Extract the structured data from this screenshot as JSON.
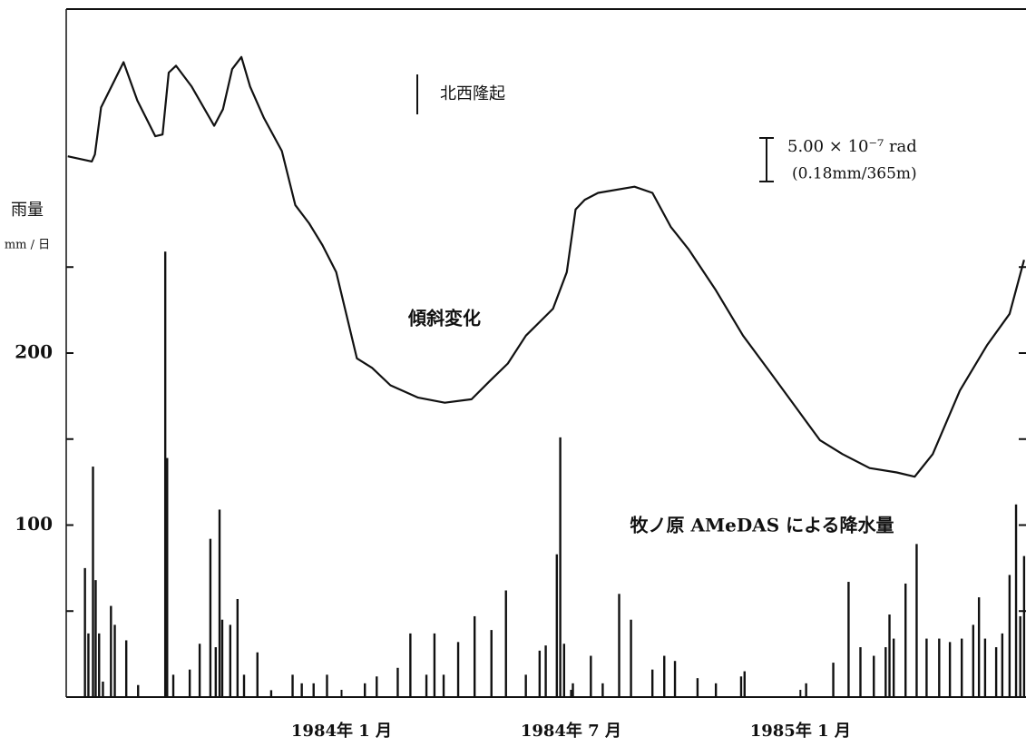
{
  "chart_data": {
    "type": "bar",
    "ylabel": "雨量",
    "yunit": "mm / 日",
    "ylim": [
      0,
      400
    ],
    "yticks": [
      100,
      200
    ],
    "yminor": [
      50,
      150,
      250
    ],
    "xlim": [
      -7.2,
      17.9
    ],
    "xticks": [
      {
        "value": 0,
        "label": "1984年 1 月"
      },
      {
        "value": 6,
        "label": "1984年 7 月"
      },
      {
        "value": 12,
        "label": "1985年 1 月"
      }
    ],
    "y2lim": [
      0,
      79
    ],
    "annotation": "北西隆起",
    "scale_bar": {
      "value": 5,
      "label": "5.00 × 10⁻⁷ rad",
      "sublabel": "(0.18mm/365m)"
    },
    "series": [
      {
        "name": "牧ノ原 AMeDAS による降水量",
        "type": "bar",
        "color": "#111111",
        "x": [
          -6.71,
          -6.62,
          -6.5,
          -6.43,
          -6.34,
          -6.24,
          -6.03,
          -5.93,
          -5.63,
          -5.32,
          -4.61,
          -4.56,
          -4.4,
          -3.97,
          -3.71,
          -3.43,
          -3.29,
          -3.19,
          -3.12,
          -2.91,
          -2.72,
          -2.55,
          -2.2,
          -1.84,
          -1.28,
          -1.04,
          -0.73,
          -0.38,
          0.61,
          0.92,
          1.47,
          1.8,
          2.22,
          2.43,
          2.67,
          3.05,
          3.48,
          3.92,
          4.3,
          4.82,
          5.18,
          5.34,
          5.63,
          5.72,
          5.82,
          6.05,
          6.52,
          6.83,
          7.26,
          7.57,
          8.13,
          8.44,
          8.72,
          9.31,
          9.79,
          10.45,
          10.54,
          12.15,
          12.86,
          13.26,
          13.57,
          13.92,
          14.23,
          14.33,
          14.44,
          14.75,
          15.04,
          15.3,
          15.63,
          15.91,
          16.22,
          16.52,
          16.67,
          16.83,
          17.12,
          17.28,
          17.47,
          17.64,
          17.75,
          17.85
        ],
        "values": [
          75,
          37,
          134,
          68,
          37,
          9,
          53,
          42,
          33,
          7,
          259,
          139,
          13,
          16,
          31,
          92,
          29,
          109,
          45,
          42,
          57,
          13,
          26,
          4,
          13,
          8,
          8,
          13,
          8,
          12,
          17,
          37,
          13,
          37,
          13,
          32,
          47,
          39,
          62,
          13,
          27,
          30,
          83,
          151,
          31,
          8,
          24,
          8,
          60,
          45,
          16,
          24,
          21,
          11,
          8,
          12,
          15,
          8,
          20,
          67,
          29,
          24,
          29,
          48,
          34,
          66,
          89,
          34,
          34,
          32,
          34,
          42,
          58,
          34,
          29,
          37,
          71,
          112,
          47,
          82
        ]
      },
      {
        "name": "傾斜変化",
        "type": "line",
        "axis": "y2",
        "color": "#111111",
        "x": [
          -7.16,
          -6.53,
          -6.45,
          -6.29,
          -5.7,
          -5.34,
          -4.87,
          -4.68,
          -4.52,
          -4.33,
          -3.92,
          -3.33,
          -3.1,
          -2.86,
          -2.62,
          -2.39,
          -2.03,
          -1.56,
          -1.21,
          -0.85,
          -0.5,
          -0.14,
          0.09,
          0.4,
          0.8,
          1.28,
          1.99,
          2.7,
          3.4,
          3.88,
          4.35,
          4.82,
          5.53,
          5.89,
          6.12,
          6.36,
          6.71,
          7.66,
          8.13,
          8.61,
          9.08,
          9.79,
          10.5,
          11.21,
          11.91,
          12.51,
          13.1,
          13.81,
          14.52,
          14.99,
          15.46,
          16.17,
          16.88,
          17.47,
          17.85
        ],
        "values": [
          62.1,
          61.5,
          62.3,
          67.7,
          72.9,
          68.5,
          64.4,
          64.6,
          71.7,
          72.5,
          70.1,
          65.6,
          67.5,
          72.1,
          73.5,
          70.1,
          66.5,
          62.7,
          56.5,
          54.4,
          51.9,
          48.8,
          44.6,
          38.9,
          37.8,
          35.8,
          34.4,
          33.8,
          34.2,
          36.3,
          38.3,
          41.5,
          44.6,
          48.8,
          56.0,
          57.1,
          57.9,
          58.6,
          57.9,
          54.0,
          51.4,
          46.7,
          41.5,
          37.3,
          33.1,
          29.5,
          27.9,
          26.3,
          25.8,
          25.3,
          27.9,
          35.2,
          40.4,
          44.0,
          50.2
        ]
      }
    ]
  }
}
